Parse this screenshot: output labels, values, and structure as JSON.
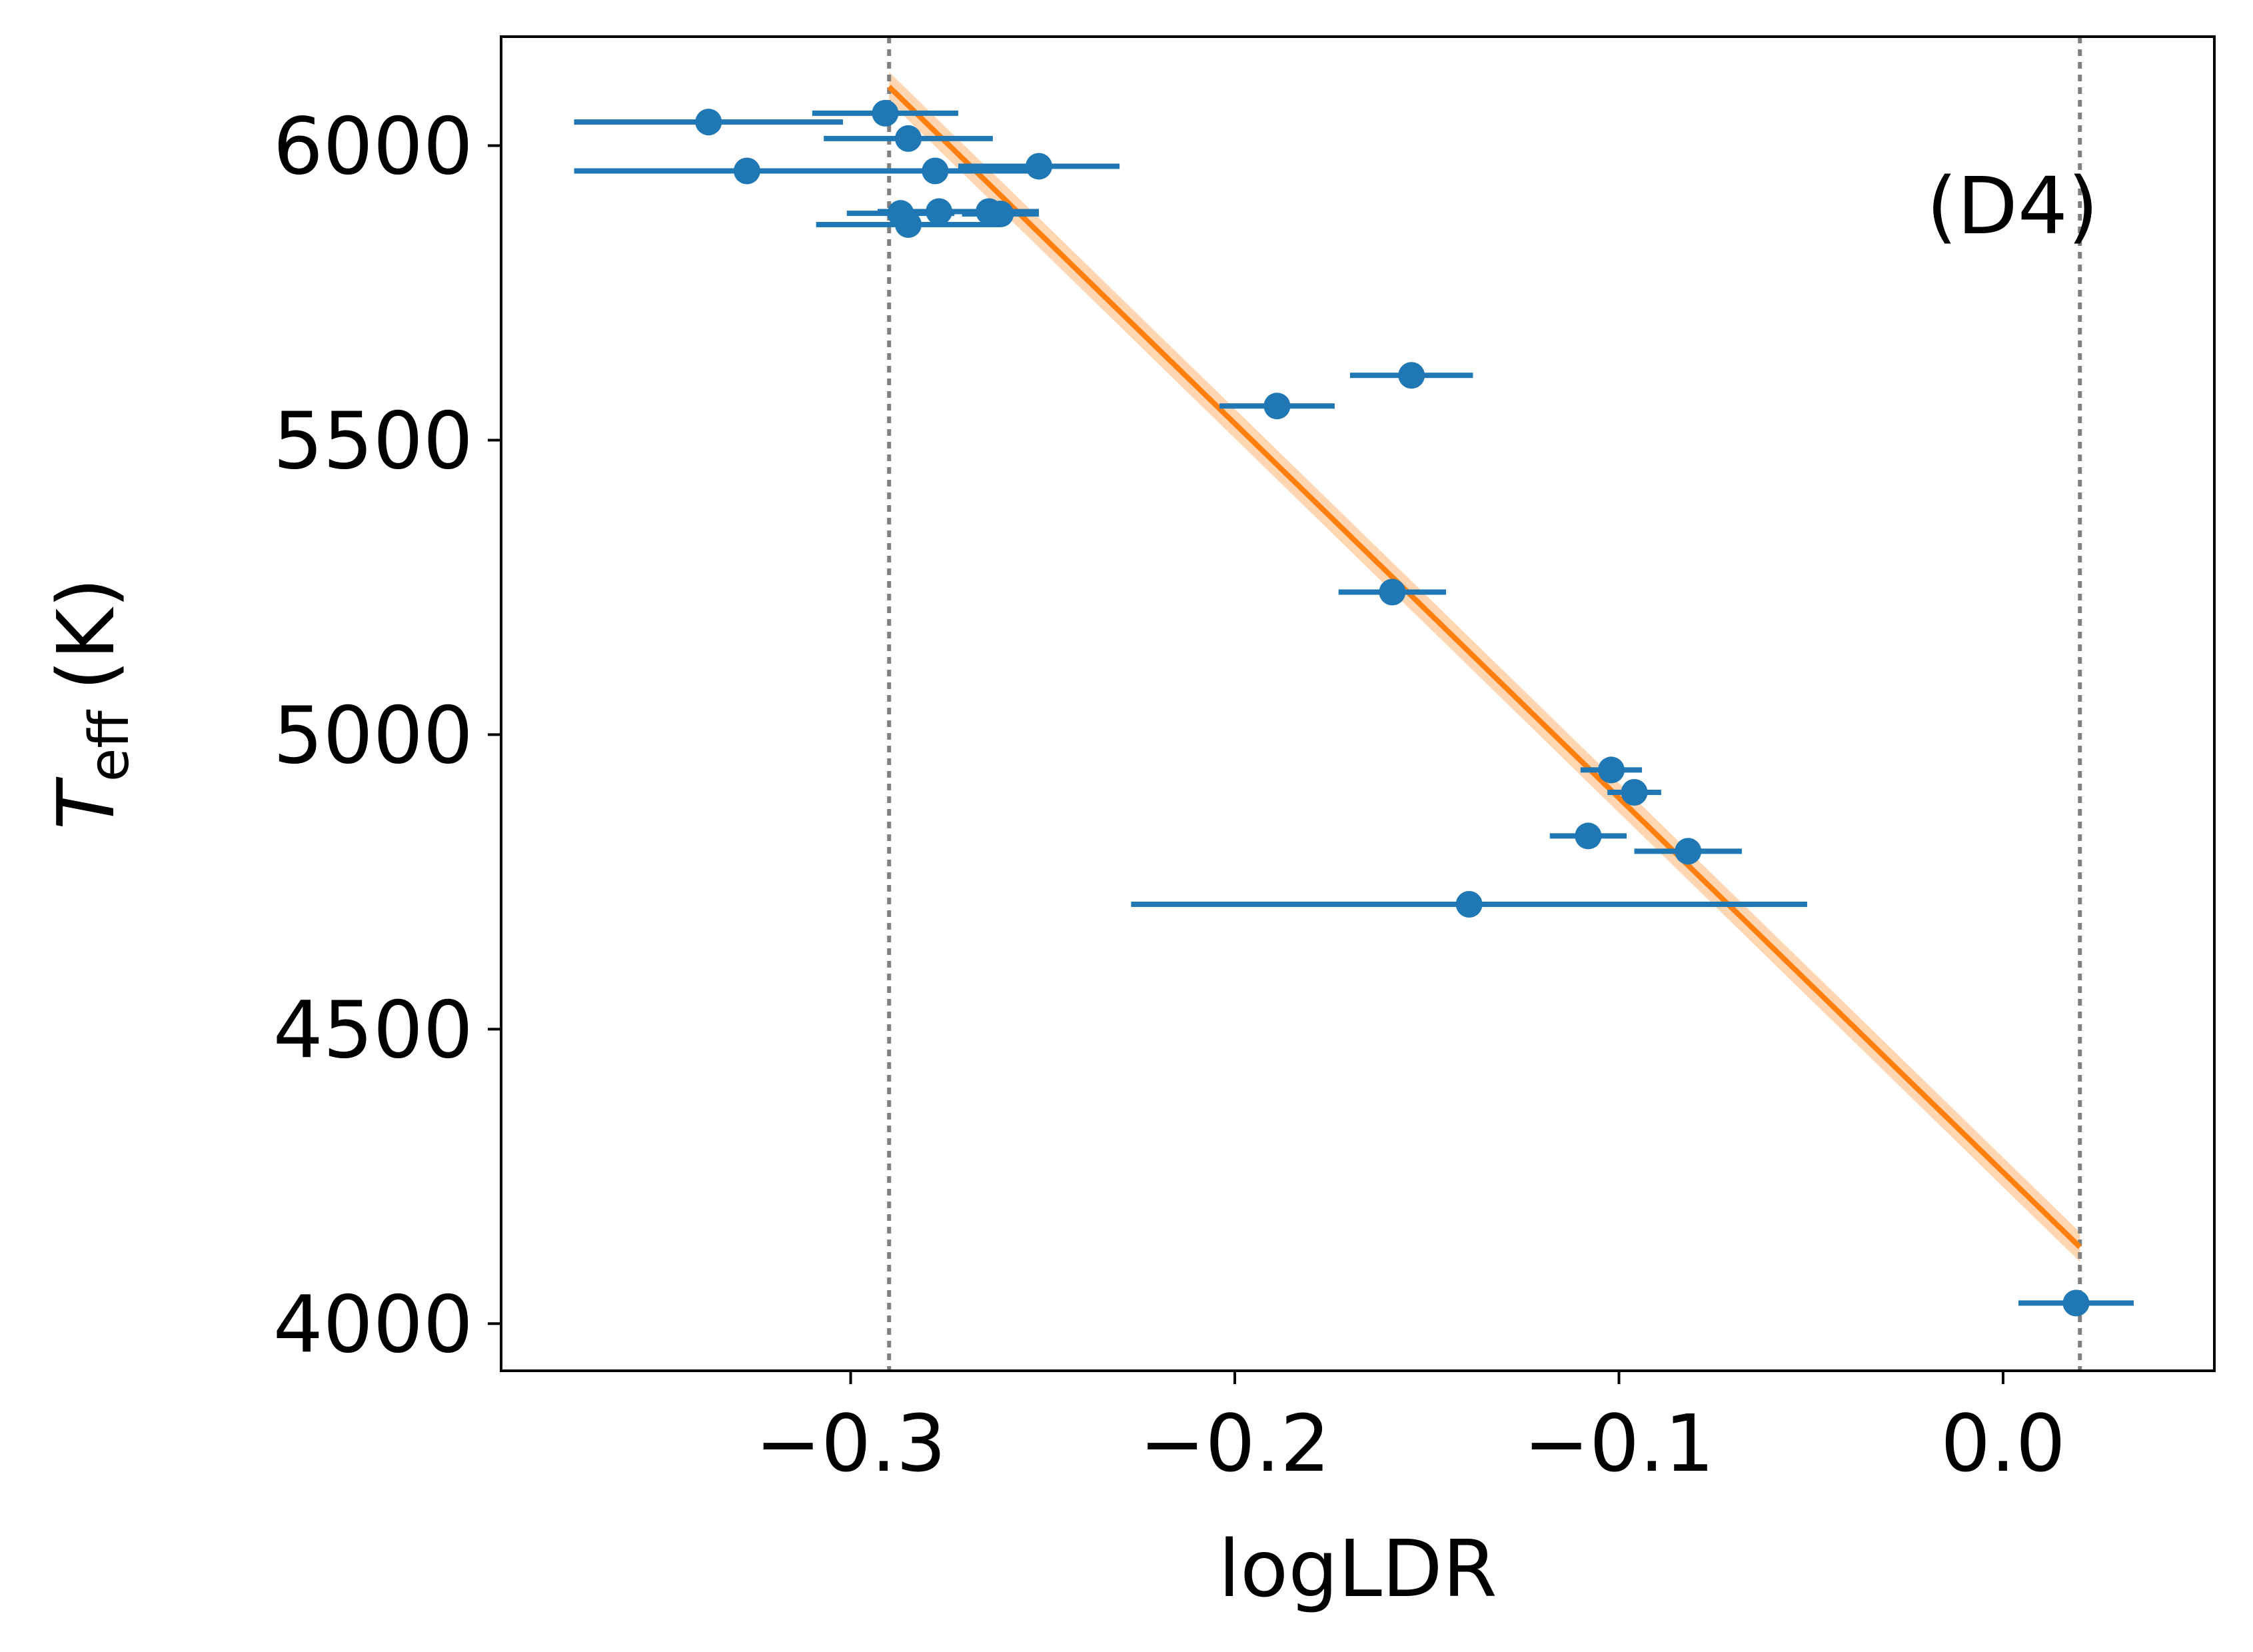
{
  "chart_data": {
    "type": "scatter",
    "title": "",
    "xlabel": "logLDR",
    "ylabel_main": "T",
    "ylabel_sub": "eff",
    "ylabel_unit": "(K)",
    "annotation": "(D4)",
    "xlim": [
      -0.391,
      0.055
    ],
    "ylim": [
      3920,
      6185
    ],
    "x_ticks": [
      -0.3,
      -0.2,
      -0.1,
      0.0
    ],
    "x_tick_labels": [
      "−0.3",
      "−0.2",
      "−0.1",
      "0.0"
    ],
    "y_ticks": [
      4000,
      4500,
      5000,
      5500,
      6000
    ],
    "y_tick_labels": [
      "4000",
      "4500",
      "5000",
      "5500",
      "6000"
    ],
    "grid": false,
    "colors": {
      "points": "#1f77b4",
      "fit_line": "#ff7f0e",
      "fit_band": "#ffcfa3",
      "range_lines": "#808080",
      "axes": "#000000"
    },
    "range_lines_x": [
      -0.29,
      0.02
    ],
    "fit_line": {
      "x": [
        -0.29,
        0.02
      ],
      "y": [
        6100,
        4130
      ],
      "band_halfwidth": 25
    },
    "points": [
      {
        "x": -0.337,
        "y": 6040,
        "xerr_lo": 0.035,
        "xerr_hi": 0.035
      },
      {
        "x": -0.291,
        "y": 6055,
        "xerr_lo": 0.019,
        "xerr_hi": 0.019
      },
      {
        "x": -0.285,
        "y": 6012,
        "xerr_lo": 0.022,
        "xerr_hi": 0.022
      },
      {
        "x": -0.327,
        "y": 5957,
        "xerr_lo": 0.045,
        "xerr_hi": 0.045
      },
      {
        "x": -0.278,
        "y": 5957,
        "xerr_lo": 0.025,
        "xerr_hi": 0.025
      },
      {
        "x": -0.251,
        "y": 5965,
        "xerr_lo": 0.021,
        "xerr_hi": 0.021
      },
      {
        "x": -0.287,
        "y": 5885,
        "xerr_lo": 0.014,
        "xerr_hi": 0.014
      },
      {
        "x": -0.277,
        "y": 5888,
        "xerr_lo": 0.016,
        "xerr_hi": 0.016
      },
      {
        "x": -0.264,
        "y": 5888,
        "xerr_lo": 0.013,
        "xerr_hi": 0.013
      },
      {
        "x": -0.261,
        "y": 5884,
        "xerr_lo": 0.01,
        "xerr_hi": 0.01
      },
      {
        "x": -0.285,
        "y": 5866,
        "xerr_lo": 0.024,
        "xerr_hi": 0.024
      },
      {
        "x": -0.154,
        "y": 5610,
        "xerr_lo": 0.016,
        "xerr_hi": 0.016
      },
      {
        "x": -0.189,
        "y": 5558,
        "xerr_lo": 0.015,
        "xerr_hi": 0.015
      },
      {
        "x": -0.159,
        "y": 5242,
        "xerr_lo": 0.014,
        "xerr_hi": 0.014
      },
      {
        "x": -0.102,
        "y": 4940,
        "xerr_lo": 0.008,
        "xerr_hi": 0.008
      },
      {
        "x": -0.096,
        "y": 4902,
        "xerr_lo": 0.007,
        "xerr_hi": 0.007
      },
      {
        "x": -0.108,
        "y": 4828,
        "xerr_lo": 0.01,
        "xerr_hi": 0.01
      },
      {
        "x": -0.082,
        "y": 4802,
        "xerr_lo": 0.014,
        "xerr_hi": 0.014
      },
      {
        "x": -0.139,
        "y": 4712,
        "xerr_lo": 0.088,
        "xerr_hi": 0.088
      },
      {
        "x": 0.019,
        "y": 4035,
        "xerr_lo": 0.015,
        "xerr_hi": 0.015
      }
    ]
  }
}
